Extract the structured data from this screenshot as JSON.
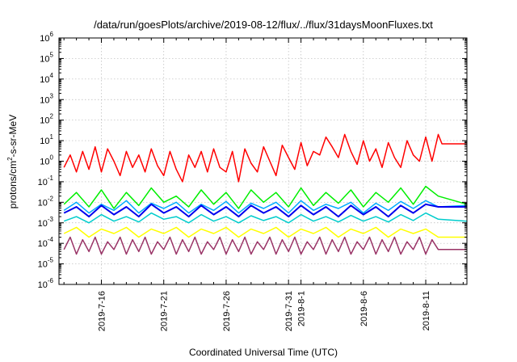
{
  "chart_data": {
    "type": "line",
    "title": "/data/run/goesPlots/archive/2019-08-12/flux/../flux/31daysMoonFluxes.txt",
    "xlabel": "Coordinated Universal Time (UTC)",
    "ylabel": "protons/cm²-s-sr-MeV",
    "yscale": "log",
    "ylim_exponents": [
      -6,
      6
    ],
    "y_tick_labels": [
      {
        "base": "10",
        "exp": "-6"
      },
      {
        "base": "10",
        "exp": "-5"
      },
      {
        "base": "10",
        "exp": "-4"
      },
      {
        "base": "10",
        "exp": "-3"
      },
      {
        "base": "10",
        "exp": "-2"
      },
      {
        "base": "10",
        "exp": "-1"
      },
      {
        "base": "10",
        "exp": "0"
      },
      {
        "base": "10",
        "exp": "1"
      },
      {
        "base": "10",
        "exp": "2"
      },
      {
        "base": "10",
        "exp": "3"
      },
      {
        "base": "10",
        "exp": "4"
      },
      {
        "base": "10",
        "exp": "5"
      },
      {
        "base": "10",
        "exp": "6"
      }
    ],
    "x_range_days": [
      12.6,
      45.3
    ],
    "x_ticks": [
      {
        "label": "2019-7-16",
        "day": 16
      },
      {
        "label": "2019-7-21",
        "day": 21
      },
      {
        "label": "2019-7-26",
        "day": 26
      },
      {
        "label": "2019-7-31",
        "day": 31
      },
      {
        "label": "2019-8-1",
        "day": 32
      },
      {
        "label": "2019-8-6",
        "day": 37
      },
      {
        "label": "2019-8-11",
        "day": 42
      }
    ],
    "grid": true,
    "series": [
      {
        "color": "#ff0000",
        "x": [
          13,
          13.5,
          14,
          14.5,
          15,
          15.5,
          16,
          16.5,
          17,
          17.5,
          18,
          18.5,
          19,
          19.5,
          20,
          20.5,
          21,
          21.5,
          22,
          22.5,
          23,
          23.5,
          24,
          24.5,
          25,
          25.5,
          26,
          26.5,
          27,
          27.5,
          28,
          28.5,
          29,
          29.5,
          30,
          30.5,
          31,
          31.5,
          32,
          32.5,
          33,
          33.5,
          34,
          34.5,
          35,
          35.5,
          36,
          36.5,
          37,
          37.5,
          38,
          38.5,
          39,
          39.5,
          40,
          40.5,
          41,
          41.5,
          42,
          42.5,
          43,
          43.3,
          44,
          45.3
        ],
        "y": [
          0.5,
          2,
          0.3,
          3,
          0.4,
          5,
          0.3,
          4,
          1,
          0.2,
          3,
          0.5,
          2,
          0.3,
          4,
          0.6,
          0.2,
          3,
          0.4,
          0.1,
          2,
          0.5,
          3,
          0.3,
          4,
          0.5,
          0.3,
          3,
          0.1,
          4,
          0.8,
          0.3,
          5,
          1,
          0.2,
          6,
          1.5,
          0.4,
          8,
          0.6,
          3,
          2,
          15,
          5,
          1.5,
          20,
          3,
          0.7,
          10,
          1,
          4,
          0.5,
          8,
          1.5,
          0.5,
          10,
          2,
          1,
          15,
          1,
          20,
          7,
          7,
          7
        ]
      },
      {
        "color": "#00ee00",
        "x": [
          13,
          14,
          15,
          16,
          17,
          18,
          19,
          20,
          21,
          22,
          23,
          24,
          25,
          26,
          27,
          28,
          29,
          30,
          31,
          32,
          33,
          34,
          35,
          36,
          37,
          38,
          39,
          40,
          41,
          42,
          43,
          45.3
        ],
        "y": [
          0.008,
          0.03,
          0.006,
          0.04,
          0.005,
          0.03,
          0.007,
          0.05,
          0.01,
          0.02,
          0.006,
          0.04,
          0.008,
          0.03,
          0.005,
          0.04,
          0.01,
          0.03,
          0.006,
          0.05,
          0.007,
          0.03,
          0.009,
          0.04,
          0.006,
          0.03,
          0.01,
          0.05,
          0.008,
          0.06,
          0.02,
          0.008
        ]
      },
      {
        "color": "#00aaff",
        "x": [
          13,
          14,
          15,
          16,
          17,
          18,
          19,
          20,
          21,
          22,
          23,
          24,
          25,
          26,
          27,
          28,
          29,
          30,
          31,
          32,
          33,
          34,
          35,
          36,
          37,
          38,
          39,
          40,
          41,
          42,
          43,
          45.3
        ],
        "y": [
          0.004,
          0.01,
          0.003,
          0.008,
          0.004,
          0.012,
          0.003,
          0.009,
          0.005,
          0.01,
          0.003,
          0.008,
          0.004,
          0.011,
          0.003,
          0.009,
          0.005,
          0.01,
          0.003,
          0.012,
          0.004,
          0.008,
          0.005,
          0.01,
          0.003,
          0.009,
          0.004,
          0.011,
          0.005,
          0.012,
          0.006,
          0.007
        ]
      },
      {
        "color": "#00cccc",
        "x": [
          13,
          14,
          15,
          16,
          17,
          18,
          19,
          20,
          21,
          22,
          23,
          24,
          25,
          26,
          27,
          28,
          29,
          30,
          31,
          32,
          33,
          34,
          35,
          36,
          37,
          38,
          39,
          40,
          41,
          42,
          43,
          45.3
        ],
        "y": [
          0.0012,
          0.002,
          0.001,
          0.0025,
          0.0012,
          0.002,
          0.0011,
          0.003,
          0.0015,
          0.002,
          0.001,
          0.0025,
          0.0012,
          0.002,
          0.001,
          0.0022,
          0.0013,
          0.002,
          0.001,
          0.0025,
          0.0012,
          0.002,
          0.0011,
          0.0023,
          0.0012,
          0.002,
          0.0011,
          0.0025,
          0.0013,
          0.003,
          0.0015,
          0.0012
        ]
      },
      {
        "color": "#0000ee",
        "x": [
          13,
          14,
          15,
          16,
          17,
          18,
          19,
          20,
          21,
          22,
          23,
          24,
          25,
          26,
          27,
          28,
          29,
          30,
          31,
          32,
          33,
          34,
          35,
          36,
          37,
          38,
          39,
          40,
          41,
          42,
          43,
          45.3
        ],
        "y": [
          0.003,
          0.006,
          0.002,
          0.007,
          0.0025,
          0.006,
          0.002,
          0.008,
          0.003,
          0.006,
          0.002,
          0.007,
          0.0025,
          0.006,
          0.002,
          0.007,
          0.003,
          0.006,
          0.002,
          0.007,
          0.0025,
          0.006,
          0.002,
          0.007,
          0.0025,
          0.006,
          0.002,
          0.007,
          0.003,
          0.008,
          0.006,
          0.006
        ]
      },
      {
        "color": "#ffff00",
        "x": [
          13,
          14,
          15,
          16,
          17,
          18,
          19,
          20,
          21,
          22,
          23,
          24,
          25,
          26,
          27,
          28,
          29,
          30,
          31,
          32,
          33,
          34,
          35,
          36,
          37,
          38,
          39,
          40,
          41,
          42,
          43,
          45.3
        ],
        "y": [
          0.0003,
          0.0006,
          0.0002,
          0.0005,
          0.0003,
          0.0006,
          0.0002,
          0.0005,
          0.0003,
          0.0006,
          0.0002,
          0.0005,
          0.0003,
          0.0006,
          0.0002,
          0.0005,
          0.0003,
          0.0006,
          0.0002,
          0.0005,
          0.0003,
          0.0006,
          0.0002,
          0.0005,
          0.0003,
          0.0006,
          0.0002,
          0.0005,
          0.0003,
          0.0005,
          0.0002,
          0.0002
        ]
      },
      {
        "color": "#993366",
        "x": [
          13,
          13.5,
          14,
          14.5,
          15,
          15.5,
          16,
          16.5,
          17,
          17.5,
          18,
          18.5,
          19,
          19.5,
          20,
          20.5,
          21,
          21.5,
          22,
          22.5,
          23,
          23.5,
          24,
          24.5,
          25,
          25.5,
          26,
          26.5,
          27,
          27.5,
          28,
          28.5,
          29,
          29.5,
          30,
          30.5,
          31,
          31.5,
          32,
          32.5,
          33,
          33.5,
          34,
          34.5,
          35,
          35.5,
          36,
          36.5,
          37,
          37.5,
          38,
          38.5,
          39,
          39.5,
          40,
          40.5,
          41,
          41.5,
          42,
          42.5,
          43,
          45.3
        ],
        "y": [
          5e-05,
          0.0002,
          3e-05,
          0.00015,
          4e-05,
          0.0002,
          3e-05,
          0.00012,
          5e-05,
          0.0002,
          3e-05,
          0.00015,
          4e-05,
          0.0002,
          3e-05,
          0.00012,
          5e-05,
          0.0002,
          3e-05,
          0.00015,
          4e-05,
          0.0002,
          3e-05,
          0.00012,
          5e-05,
          0.0002,
          3e-05,
          0.00015,
          4e-05,
          0.0002,
          3e-05,
          0.00012,
          5e-05,
          0.0002,
          3e-05,
          0.00015,
          4e-05,
          0.0002,
          3e-05,
          0.00012,
          5e-05,
          0.0002,
          3e-05,
          0.00015,
          4e-05,
          0.0002,
          3e-05,
          0.00012,
          5e-05,
          0.0002,
          3e-05,
          0.00015,
          4e-05,
          0.0002,
          3e-05,
          0.00012,
          5e-05,
          0.0002,
          3e-05,
          0.00015,
          5e-05,
          5e-05
        ]
      }
    ]
  }
}
